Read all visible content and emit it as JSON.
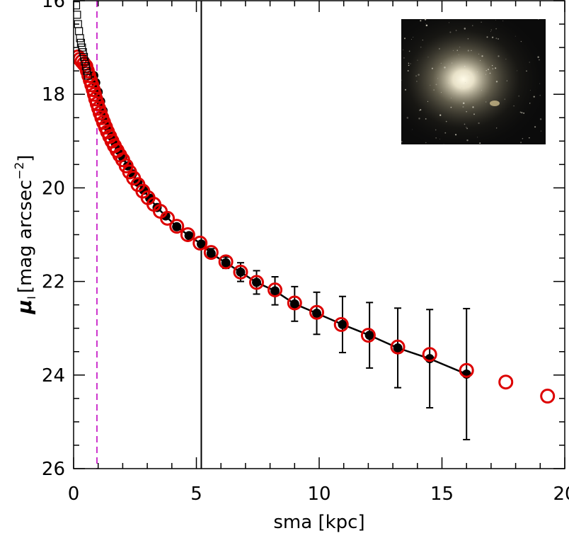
{
  "chart_data": {
    "type": "scatter",
    "title": "",
    "xlabel": "sma [kpc]",
    "ylabel_symbol": "μ",
    "ylabel_subscript": "I",
    "ylabel_units": "[mag arcsec",
    "ylabel_exponent": "−2",
    "ylabel_close": "]",
    "xlim": [
      0,
      20
    ],
    "ylim": [
      26,
      16
    ],
    "y_inverted": true,
    "x_ticks": [
      0,
      5,
      10,
      15,
      20
    ],
    "x_tick_labels": [
      "0",
      "5",
      "10",
      "15",
      "20"
    ],
    "y_ticks": [
      16,
      18,
      20,
      22,
      24,
      26
    ],
    "y_tick_labels": [
      "16",
      "18",
      "20",
      "22",
      "24",
      "26"
    ],
    "x_minor_step": 1,
    "y_minor_step": 0.5,
    "grid": false,
    "vlines": [
      {
        "x": 5.2,
        "style": "solid",
        "color": "#000000"
      },
      {
        "x": 0.95,
        "style": "dashed",
        "color": "#cc33cc"
      }
    ],
    "series": [
      {
        "marker": "filled-circle",
        "color": "#000000",
        "with_line": true,
        "x": [
          0.82,
          0.9,
          1.0,
          1.1,
          1.2,
          1.3,
          1.42,
          1.55,
          1.7,
          1.85,
          2.0,
          2.2,
          2.4,
          2.62,
          2.85,
          3.1,
          3.4,
          3.75,
          4.2,
          4.7,
          5.2,
          5.6,
          6.2,
          6.8,
          7.45,
          8.2,
          9.0,
          9.9,
          10.95,
          12.05,
          13.2,
          14.5,
          16.0
        ],
        "y": [
          17.6,
          17.75,
          17.95,
          18.15,
          18.35,
          18.55,
          18.72,
          18.9,
          19.05,
          19.2,
          19.35,
          19.53,
          19.7,
          19.88,
          20.05,
          20.22,
          20.42,
          20.6,
          20.83,
          21.02,
          21.2,
          21.4,
          21.6,
          21.8,
          22.02,
          22.2,
          22.48,
          22.68,
          22.92,
          23.15,
          23.42,
          23.65,
          23.98
        ],
        "yerr": [
          0,
          0,
          0,
          0,
          0,
          0,
          0,
          0,
          0,
          0,
          0,
          0,
          0,
          0,
          0,
          0,
          0,
          0,
          0,
          0,
          0,
          0.1,
          0.12,
          0.2,
          0.25,
          0.3,
          0.37,
          0.45,
          0.6,
          0.7,
          0.85,
          1.05,
          1.4
        ]
      },
      {
        "marker": "open-circle",
        "color": "#dd0000",
        "x": [
          0.18,
          0.26,
          0.34,
          0.42,
          0.5,
          0.56,
          0.62,
          0.68,
          0.74,
          0.8,
          0.85,
          0.9,
          0.96,
          1.02,
          1.08,
          1.15,
          1.22,
          1.3,
          1.38,
          1.47,
          1.56,
          1.66,
          1.77,
          1.88,
          2.0,
          2.14,
          2.28,
          2.44,
          2.62,
          2.82,
          3.03,
          3.27,
          3.53,
          3.82,
          4.2,
          4.65,
          5.15,
          5.6,
          6.2,
          6.8,
          7.45,
          8.2,
          9.0,
          9.9,
          10.9,
          12.0,
          13.2,
          14.5,
          16.0,
          17.6,
          19.3
        ],
        "y": [
          17.2,
          17.25,
          17.3,
          17.35,
          17.4,
          17.5,
          17.6,
          17.7,
          17.8,
          17.9,
          18.0,
          18.1,
          18.2,
          18.3,
          18.4,
          18.5,
          18.6,
          18.7,
          18.8,
          18.9,
          19.0,
          19.1,
          19.2,
          19.3,
          19.4,
          19.53,
          19.66,
          19.79,
          19.93,
          20.07,
          20.21,
          20.35,
          20.5,
          20.65,
          20.82,
          21.0,
          21.18,
          21.38,
          21.58,
          21.8,
          22.02,
          22.18,
          22.46,
          22.66,
          22.92,
          23.15,
          23.4,
          23.56,
          23.9,
          24.15,
          24.45
        ]
      },
      {
        "marker": "open-square",
        "color": "#000000",
        "x": [
          0.06,
          0.1,
          0.14,
          0.18,
          0.22,
          0.26,
          0.3,
          0.34,
          0.38,
          0.42,
          0.46,
          0.5,
          0.54,
          0.58
        ],
        "y": [
          15.85,
          16.1,
          16.3,
          16.5,
          16.65,
          16.8,
          16.9,
          17.0,
          17.1,
          17.2,
          17.3,
          17.4,
          17.5,
          17.6
        ]
      }
    ],
    "inset": {
      "kind": "galaxy-image",
      "background": "#0b0b0b",
      "glow_color": "#f7f1da"
    }
  }
}
